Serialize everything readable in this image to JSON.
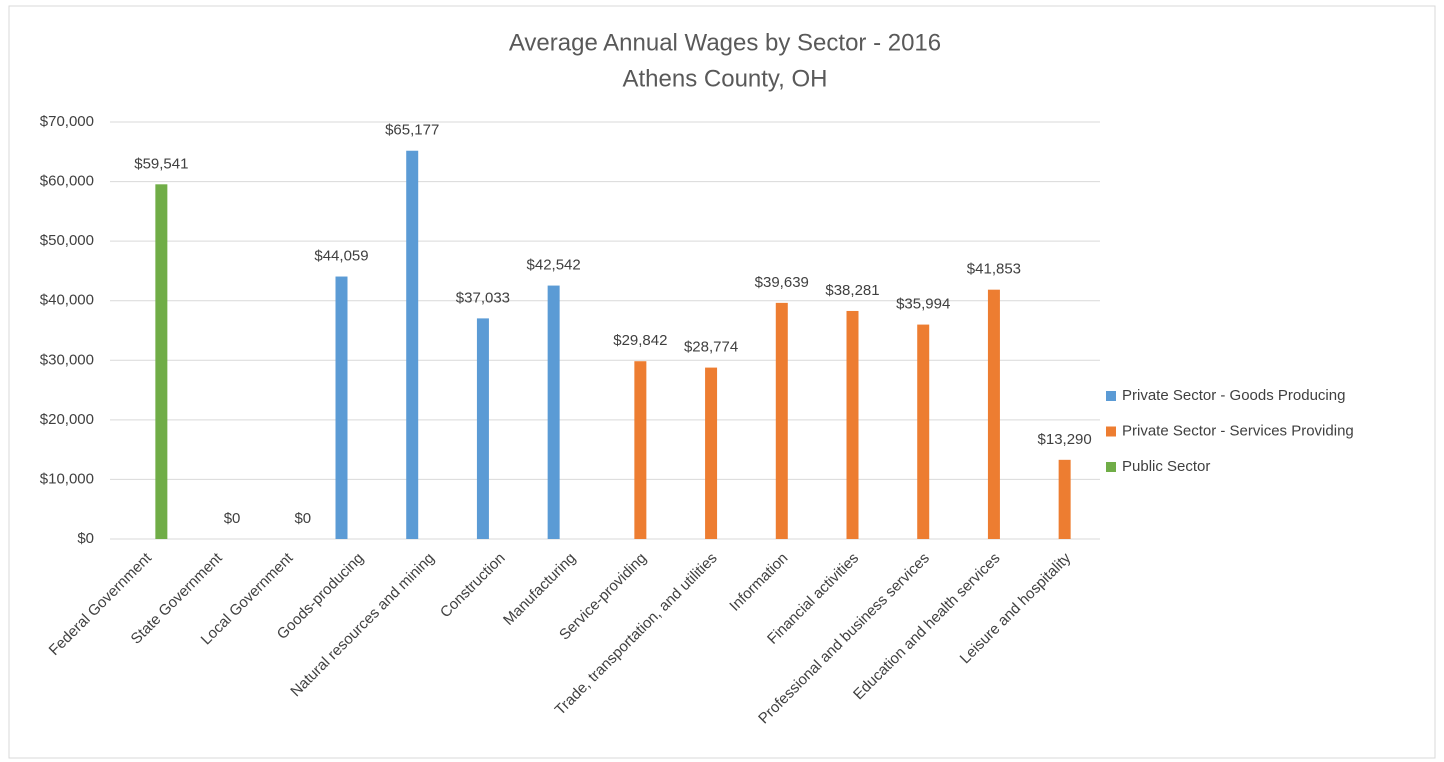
{
  "chart_data": {
    "type": "bar",
    "title": "Average Annual Wages by Sector - 2016",
    "subtitle": "Athens County, OH",
    "categories": [
      "Federal Government",
      "State Government",
      "Local Government",
      "Goods-producing",
      "Natural resources and mining",
      "Construction",
      "Manufacturing",
      "Service-providing",
      "Trade, transportation, and utilities",
      "Information",
      "Financial activities",
      "Professional and business services",
      "Education and health services",
      "Leisure and hospitality"
    ],
    "series": [
      {
        "name": "Private Sector - Goods Producing",
        "color": "#5b9bd5",
        "values": [
          null,
          null,
          null,
          44059,
          65177,
          37033,
          42542,
          null,
          null,
          null,
          null,
          null,
          null,
          null
        ],
        "value_labels": [
          null,
          null,
          null,
          "$44,059",
          "$65,177",
          "$37,033",
          "$42,542",
          null,
          null,
          null,
          null,
          null,
          null,
          null
        ]
      },
      {
        "name": "Private Sector - Services Providing",
        "color": "#ed7d31",
        "values": [
          null,
          null,
          null,
          null,
          null,
          null,
          null,
          29842,
          28774,
          39639,
          38281,
          35994,
          41853,
          13290
        ],
        "value_labels": [
          null,
          null,
          null,
          null,
          null,
          null,
          null,
          "$29,842",
          "$28,774",
          "$39,639",
          "$38,281",
          "$35,994",
          "$41,853",
          "$13,290"
        ]
      },
      {
        "name": "Public Sector",
        "color": "#70ad47",
        "values": [
          59541,
          0,
          0,
          null,
          null,
          null,
          null,
          null,
          null,
          null,
          null,
          null,
          null,
          null
        ],
        "value_labels": [
          "$59,541",
          "$0",
          "$0",
          null,
          null,
          null,
          null,
          null,
          null,
          null,
          null,
          null,
          null,
          null
        ]
      }
    ],
    "ylim": [
      0,
      70000
    ],
    "yticks": [
      {
        "value": 0,
        "label": "$0"
      },
      {
        "value": 10000,
        "label": "$10,000"
      },
      {
        "value": 20000,
        "label": "$20,000"
      },
      {
        "value": 30000,
        "label": "$30,000"
      },
      {
        "value": 40000,
        "label": "$40,000"
      },
      {
        "value": 50000,
        "label": "$50,000"
      },
      {
        "value": 60000,
        "label": "$60,000"
      },
      {
        "value": 70000,
        "label": "$70,000"
      }
    ],
    "grid": true,
    "legend": "right"
  }
}
